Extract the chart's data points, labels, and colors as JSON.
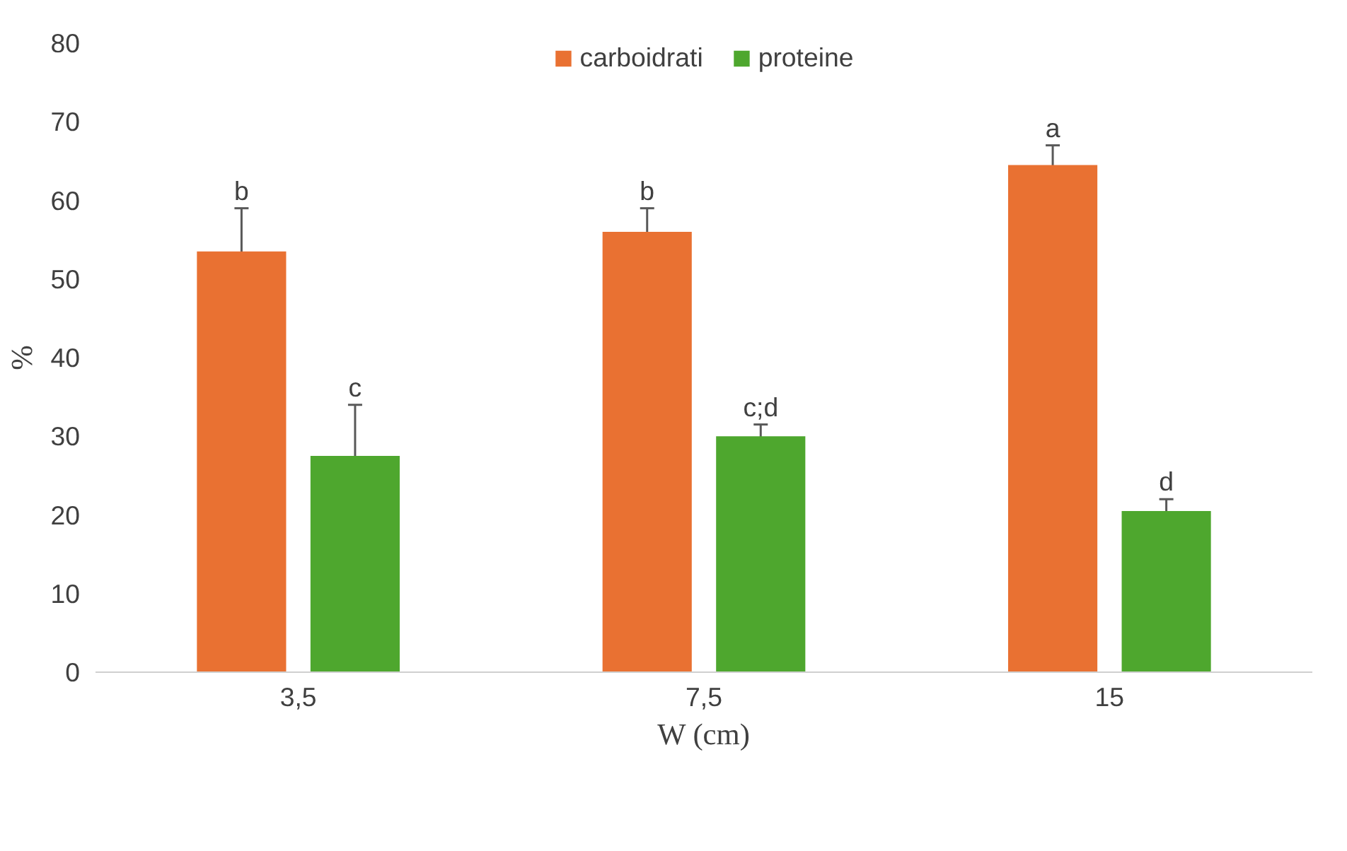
{
  "chart_data": {
    "type": "bar",
    "xlabel": "W (cm)",
    "ylabel": "%",
    "categories": [
      "3,5",
      "7,5",
      "15"
    ],
    "series": [
      {
        "name": "carboidrati",
        "color": "#e97132",
        "values": [
          53.5,
          56,
          64.5
        ],
        "errors": [
          5.5,
          3,
          2.5
        ]
      },
      {
        "name": "proteine",
        "color": "#4ea72e",
        "values": [
          27.5,
          30,
          20.5
        ],
        "errors": [
          6.5,
          1.5,
          1.5
        ]
      }
    ],
    "ylim": [
      0,
      80
    ],
    "yticks": [
      0,
      10,
      20,
      30,
      40,
      50,
      60,
      70,
      80
    ],
    "grid": false,
    "legend": "top",
    "annotations": [
      "b",
      "c",
      "b",
      "c;d",
      "a",
      "d"
    ]
  }
}
